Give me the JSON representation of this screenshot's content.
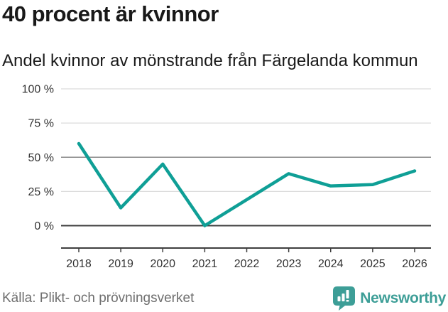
{
  "header": {
    "title": "40 procent är kvinnor",
    "subtitle": "Andel kvinnor av mönstrande från Färgelanda kommun"
  },
  "chart_data": {
    "type": "line",
    "title": "40 procent är kvinnor",
    "subtitle": "Andel kvinnor av mönstrande från Färgelanda kommun",
    "categories": [
      "2018",
      "2019",
      "2020",
      "2021",
      "2022",
      "2023",
      "2024",
      "2025",
      "2026"
    ],
    "series": [
      {
        "name": "Andel kvinnor av mönstrande",
        "values": [
          60,
          13,
          45,
          0,
          19,
          38,
          29,
          30,
          40
        ]
      }
    ],
    "unit": "%",
    "xlabel": "",
    "ylabel": "",
    "ylim": [
      0,
      100
    ],
    "y_ticks": [
      {
        "value": 0,
        "label": "0 %",
        "line": "dark"
      },
      {
        "value": 25,
        "label": "25 %",
        "line": "light"
      },
      {
        "value": 50,
        "label": "50 %",
        "line": "mid"
      },
      {
        "value": 75,
        "label": "75 %",
        "line": "light"
      },
      {
        "value": 100,
        "label": "100 %",
        "line": "light"
      }
    ],
    "grid": "horizontal",
    "legend": "none",
    "marker": "none"
  },
  "colors": {
    "line": "#0f9f96",
    "grid_light": "#dcdcdc",
    "grid_mid": "#8a8a8a",
    "grid_dark": "#3f3f3f",
    "axis": "#3f3f3f",
    "tick_label": "#333333",
    "source_text": "#6f6f6f",
    "brand": "#3d9e97"
  },
  "footer": {
    "source": "Källa: Plikt- och prövningsverket",
    "brand_name": "Newsworthy"
  },
  "icons": {
    "logo": "newsworthy-bar-chart-bubble"
  }
}
